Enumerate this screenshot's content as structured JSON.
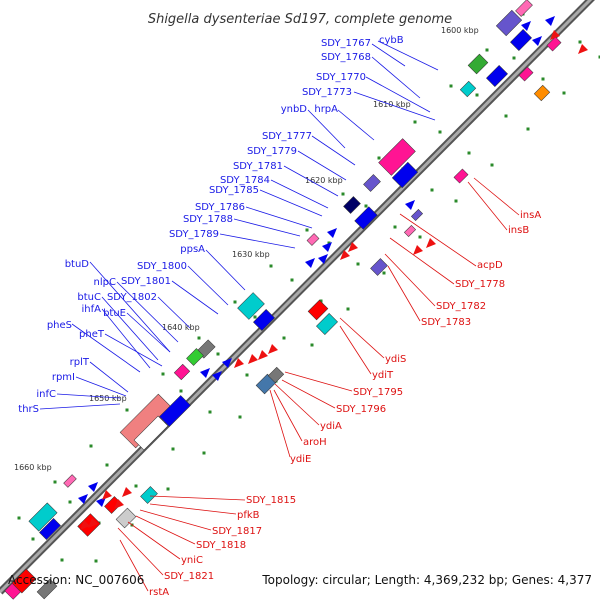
{
  "title": "Shigella dysenteriae Sd197, complete genome",
  "footer": {
    "accession": "Accession: NC_007606",
    "summary": "Topology: circular; Length: 4,369,232 bp; Genes: 4,377"
  },
  "colors": {
    "forward_label": "#1a1ae6",
    "reverse_label": "#dd1111",
    "backbone": "#777777",
    "tick": "#228822"
  },
  "kbp_markers": [
    "1600 kbp",
    "1610 kbp",
    "1620 kbp",
    "1630 kbp",
    "1640 kbp",
    "1650 kbp",
    "1660 kbp"
  ],
  "forward_genes": [
    "SDY_1767",
    "cybB",
    "SDY_1768",
    "SDY_1770",
    "SDY_1773",
    "ynbD",
    "hrpA",
    "SDY_1777",
    "SDY_1779",
    "SDY_1781",
    "SDY_1784",
    "SDY_1785",
    "SDY_1786",
    "SDY_1788",
    "SDY_1789",
    "ppsA",
    "SDY_1800",
    "SDY_1801",
    "btuD",
    "nlpC",
    "btuC",
    "SDY_1802",
    "ihfA",
    "btuE",
    "pheS",
    "pheT",
    "rplT",
    "rpmI",
    "infC",
    "thrS"
  ],
  "reverse_genes": [
    "insA",
    "insB",
    "acpD",
    "SDY_1778",
    "SDY_1782",
    "SDY_1783",
    "ydiS",
    "ydiT",
    "SDY_1795",
    "SDY_1796",
    "ydiA",
    "aroH",
    "ydiE",
    "SDY_1815",
    "pfkB",
    "SDY_1817",
    "SDY_1818",
    "yniC",
    "SDY_1821",
    "rstA"
  ]
}
